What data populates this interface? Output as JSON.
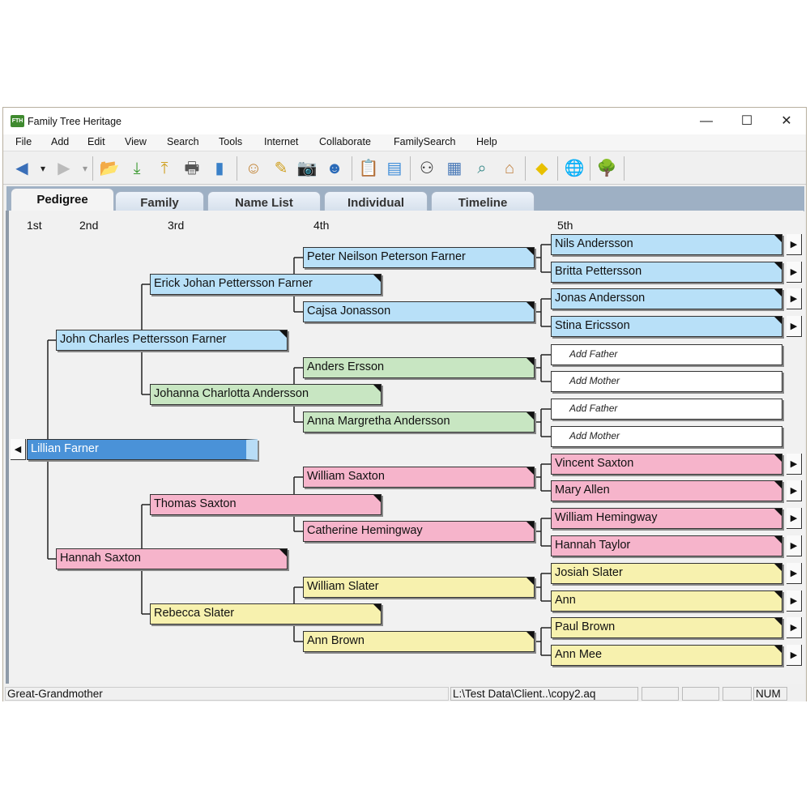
{
  "window": {
    "title": "Family Tree Heritage",
    "app_icon_text": "FTH",
    "minimize": "—",
    "maximize": "☐",
    "close": "✕"
  },
  "menu": [
    "File",
    "Add",
    "Edit",
    "View",
    "Search",
    "Tools",
    "Internet",
    "Collaborate",
    "FamilySearch",
    "Help"
  ],
  "toolbar": [
    {
      "icon": "back-arrow-icon",
      "glyph": "◀",
      "color": "#3a6fb8"
    },
    {
      "icon": "dropdown-arrow-icon",
      "glyph": "▾",
      "color": "#222"
    },
    {
      "icon": "forward-arrow-icon",
      "glyph": "▶",
      "color": "#bbb"
    },
    {
      "icon": "dropdown-arrow-icon",
      "glyph": "▾",
      "color": "#999"
    },
    {
      "icon": "open-folder-icon",
      "glyph": "📂",
      "color": "#e0b020"
    },
    {
      "icon": "import-icon",
      "glyph": "⤓",
      "color": "#3a9a30"
    },
    {
      "icon": "export-icon",
      "glyph": "⤒",
      "color": "#d0a020"
    },
    {
      "icon": "print-icon",
      "glyph": "🖶",
      "color": "#555"
    },
    {
      "icon": "book-icon",
      "glyph": "▮",
      "color": "#3a80c8"
    },
    {
      "icon": "edit-person-icon",
      "glyph": "☺",
      "color": "#c08030"
    },
    {
      "icon": "notes-icon",
      "glyph": "✎",
      "color": "#d0a020"
    },
    {
      "icon": "camera-icon",
      "glyph": "📷",
      "color": "#445"
    },
    {
      "icon": "add-person-icon",
      "glyph": "☻",
      "color": "#2a6ab8"
    },
    {
      "icon": "clipboard-icon",
      "glyph": "📋",
      "color": "#556"
    },
    {
      "icon": "card-icon",
      "glyph": "▤",
      "color": "#3a8ad8"
    },
    {
      "icon": "binoculars-icon",
      "glyph": "⚇",
      "color": "#333"
    },
    {
      "icon": "person-record-icon",
      "glyph": "▦",
      "color": "#4a7ab8"
    },
    {
      "icon": "chart-search-icon",
      "glyph": "⌕",
      "color": "#3a8a8a"
    },
    {
      "icon": "home-icon",
      "glyph": "⌂",
      "color": "#c08040"
    },
    {
      "icon": "merge-sign-icon",
      "glyph": "◆",
      "color": "#e8c000"
    },
    {
      "icon": "globe-icon",
      "glyph": "🌐",
      "color": "#2a80c0"
    },
    {
      "icon": "tree-icon",
      "glyph": "🌳",
      "color": "#2a8a2a"
    }
  ],
  "tabs": [
    {
      "label": "Pedigree",
      "active": true
    },
    {
      "label": "Family",
      "active": false
    },
    {
      "label": "Name List",
      "active": false
    },
    {
      "label": "Individual",
      "active": false
    },
    {
      "label": "Timeline",
      "active": false
    }
  ],
  "generations": [
    "1st",
    "2nd",
    "3rd",
    "4th",
    "5th"
  ],
  "colors": {
    "blue": "#b8e0f8",
    "selected": "#4a92d8",
    "green": "#c8e6c2",
    "pink": "#f6b4cb",
    "yellow": "#f7f1ae",
    "add": "#ffffff"
  },
  "pedigree": [
    [
      {
        "name": "Lillian Farner",
        "color": "selected"
      }
    ],
    [
      {
        "name": "John Charles Pettersson Farner",
        "color": "blue"
      },
      {
        "name": "Hannah Saxton",
        "color": "pink"
      }
    ],
    [
      {
        "name": "Erick Johan Pettersson Farner",
        "color": "blue"
      },
      {
        "name": "Johanna Charlotta Andersson",
        "color": "green"
      },
      {
        "name": "Thomas Saxton",
        "color": "pink"
      },
      {
        "name": "Rebecca Slater",
        "color": "yellow"
      }
    ],
    [
      {
        "name": "Peter Neilson Peterson Farner",
        "color": "blue"
      },
      {
        "name": "Cajsa Jonasson",
        "color": "blue"
      },
      {
        "name": "Anders Ersson",
        "color": "green"
      },
      {
        "name": "Anna Margretha Andersson",
        "color": "green"
      },
      {
        "name": "William Saxton",
        "color": "pink"
      },
      {
        "name": "Catherine Hemingway",
        "color": "pink"
      },
      {
        "name": "William Slater",
        "color": "yellow"
      },
      {
        "name": "Ann Brown",
        "color": "yellow"
      }
    ],
    [
      {
        "name": "Nils Andersson",
        "color": "blue"
      },
      {
        "name": "Britta Pettersson",
        "color": "blue"
      },
      {
        "name": "Jonas Andersson",
        "color": "blue"
      },
      {
        "name": "Stina Ericsson",
        "color": "blue"
      },
      {
        "name": "Add Father",
        "color": "add"
      },
      {
        "name": "Add Mother",
        "color": "add"
      },
      {
        "name": "Add Father",
        "color": "add"
      },
      {
        "name": "Add Mother",
        "color": "add"
      },
      {
        "name": "Vincent Saxton",
        "color": "pink"
      },
      {
        "name": "Mary Allen",
        "color": "pink"
      },
      {
        "name": "William Hemingway",
        "color": "pink"
      },
      {
        "name": "Hannah Taylor",
        "color": "pink"
      },
      {
        "name": "Josiah Slater",
        "color": "yellow"
      },
      {
        "name": "Ann",
        "color": "yellow"
      },
      {
        "name": "Paul Brown",
        "color": "yellow"
      },
      {
        "name": "Ann Mee",
        "color": "yellow"
      }
    ]
  ],
  "status": {
    "relationship": "Great-Grandmother",
    "file": "L:\\Test Data\\Client..\\copy2.aq",
    "num": "NUM"
  }
}
